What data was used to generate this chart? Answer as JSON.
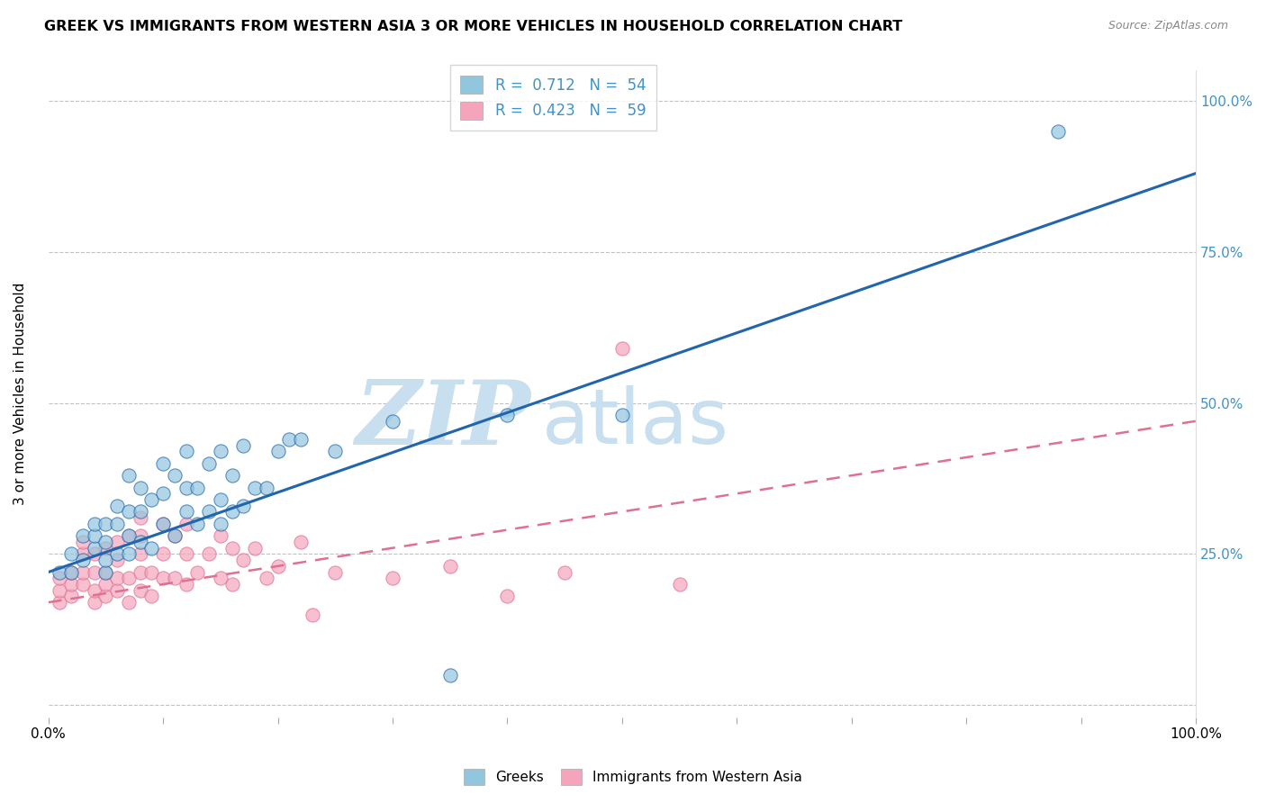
{
  "title": "GREEK VS IMMIGRANTS FROM WESTERN ASIA 3 OR MORE VEHICLES IN HOUSEHOLD CORRELATION CHART",
  "source": "Source: ZipAtlas.com",
  "ylabel": "3 or more Vehicles in Household",
  "legend_r1_val": "0.712",
  "legend_n1_val": "54",
  "legend_r2_val": "0.423",
  "legend_n2_val": "59",
  "legend_label1": "Greeks",
  "legend_label2": "Immigrants from Western Asia",
  "color_blue": "#92c5de",
  "color_pink": "#f4a5bb",
  "color_blue_line": "#2166ac",
  "color_pink_line": "#e07090",
  "color_right_axis": "#4292c6",
  "watermark_zip": "#c8dff0",
  "watermark_atlas": "#c8dff0",
  "background_color": "#ffffff",
  "grid_color": "#bbbbbb",
  "blue_line_x0": 0.0,
  "blue_line_y0": 0.22,
  "blue_line_x1": 1.0,
  "blue_line_y1": 0.88,
  "pink_line_x0": 0.0,
  "pink_line_y0": 0.17,
  "pink_line_x1": 1.0,
  "pink_line_y1": 0.47,
  "blue_scatter_x": [
    0.01,
    0.02,
    0.02,
    0.03,
    0.03,
    0.04,
    0.04,
    0.04,
    0.05,
    0.05,
    0.05,
    0.05,
    0.06,
    0.06,
    0.06,
    0.07,
    0.07,
    0.07,
    0.07,
    0.08,
    0.08,
    0.08,
    0.09,
    0.09,
    0.1,
    0.1,
    0.1,
    0.11,
    0.11,
    0.12,
    0.12,
    0.12,
    0.13,
    0.13,
    0.14,
    0.14,
    0.15,
    0.15,
    0.15,
    0.16,
    0.16,
    0.17,
    0.17,
    0.18,
    0.19,
    0.2,
    0.21,
    0.22,
    0.25,
    0.3,
    0.4,
    0.5,
    0.88,
    0.35
  ],
  "blue_scatter_y": [
    0.22,
    0.22,
    0.25,
    0.24,
    0.28,
    0.26,
    0.28,
    0.3,
    0.22,
    0.24,
    0.27,
    0.3,
    0.25,
    0.3,
    0.33,
    0.25,
    0.28,
    0.32,
    0.38,
    0.27,
    0.32,
    0.36,
    0.26,
    0.34,
    0.3,
    0.35,
    0.4,
    0.28,
    0.38,
    0.32,
    0.36,
    0.42,
    0.3,
    0.36,
    0.32,
    0.4,
    0.3,
    0.34,
    0.42,
    0.32,
    0.38,
    0.33,
    0.43,
    0.36,
    0.36,
    0.42,
    0.44,
    0.44,
    0.42,
    0.47,
    0.48,
    0.48,
    0.95,
    0.05
  ],
  "pink_scatter_x": [
    0.01,
    0.01,
    0.01,
    0.02,
    0.02,
    0.02,
    0.03,
    0.03,
    0.03,
    0.03,
    0.04,
    0.04,
    0.04,
    0.04,
    0.05,
    0.05,
    0.05,
    0.05,
    0.06,
    0.06,
    0.06,
    0.06,
    0.07,
    0.07,
    0.07,
    0.08,
    0.08,
    0.08,
    0.08,
    0.08,
    0.09,
    0.09,
    0.1,
    0.1,
    0.1,
    0.11,
    0.11,
    0.12,
    0.12,
    0.12,
    0.13,
    0.14,
    0.15,
    0.15,
    0.16,
    0.16,
    0.17,
    0.18,
    0.19,
    0.2,
    0.22,
    0.23,
    0.25,
    0.3,
    0.35,
    0.4,
    0.45,
    0.55,
    0.5
  ],
  "pink_scatter_y": [
    0.17,
    0.19,
    0.21,
    0.18,
    0.2,
    0.22,
    0.2,
    0.22,
    0.25,
    0.27,
    0.17,
    0.19,
    0.22,
    0.25,
    0.18,
    0.2,
    0.22,
    0.26,
    0.19,
    0.21,
    0.24,
    0.27,
    0.17,
    0.21,
    0.28,
    0.19,
    0.22,
    0.25,
    0.28,
    0.31,
    0.18,
    0.22,
    0.21,
    0.25,
    0.3,
    0.21,
    0.28,
    0.2,
    0.25,
    0.3,
    0.22,
    0.25,
    0.21,
    0.28,
    0.2,
    0.26,
    0.24,
    0.26,
    0.21,
    0.23,
    0.27,
    0.15,
    0.22,
    0.21,
    0.23,
    0.18,
    0.22,
    0.2,
    0.59
  ],
  "xlim": [
    0.0,
    1.0
  ],
  "ylim": [
    -0.02,
    1.05
  ]
}
